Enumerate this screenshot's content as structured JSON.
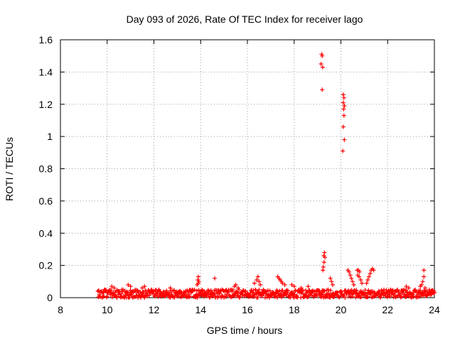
{
  "chart_data": {
    "type": "scatter",
    "title": "Day 093 of 2026, Rate Of TEC Index for receiver lago",
    "xlabel": "GPS time / hours",
    "ylabel": "ROTI / TECUs",
    "xlim": [
      8,
      24
    ],
    "ylim": [
      0,
      1.6
    ],
    "xticks": [
      8,
      10,
      12,
      14,
      16,
      18,
      20,
      22,
      24
    ],
    "xtick_labels": [
      "8",
      "10",
      "12",
      "14",
      "16",
      "18",
      "20",
      "22",
      "24"
    ],
    "yticks": [
      0,
      0.2,
      0.4,
      0.6,
      0.8,
      1.0,
      1.2,
      1.4,
      1.6
    ],
    "ytick_labels": [
      "0",
      "0.2",
      "0.4",
      "0.6",
      "0.8",
      "1",
      "1.2",
      "1.4",
      "1.6"
    ],
    "grid": true,
    "marker": "+",
    "marker_color": "#ff0000",
    "data_start_hour": 9.6,
    "data_end_hour": 24.0,
    "baseline_band": [
      0.0,
      0.05
    ],
    "series": [
      {
        "name": "ROTI",
        "points": [
          [
            19.18,
            1.51
          ],
          [
            19.2,
            1.5
          ],
          [
            19.15,
            1.45
          ],
          [
            19.22,
            1.43
          ],
          [
            19.2,
            1.29
          ],
          [
            20.1,
            1.26
          ],
          [
            20.13,
            1.24
          ],
          [
            20.1,
            1.21
          ],
          [
            20.15,
            1.19
          ],
          [
            20.12,
            1.17
          ],
          [
            20.13,
            1.13
          ],
          [
            20.1,
            1.06
          ],
          [
            20.15,
            0.98
          ],
          [
            20.08,
            0.91
          ],
          [
            19.3,
            0.28
          ],
          [
            19.27,
            0.26
          ],
          [
            19.32,
            0.25
          ],
          [
            19.28,
            0.22
          ],
          [
            19.25,
            0.19
          ],
          [
            19.23,
            0.17
          ],
          [
            19.55,
            0.12
          ],
          [
            19.6,
            0.1
          ],
          [
            19.65,
            0.08
          ],
          [
            13.9,
            0.13
          ],
          [
            13.88,
            0.11
          ],
          [
            13.92,
            0.1
          ],
          [
            13.9,
            0.09
          ],
          [
            13.85,
            0.08
          ],
          [
            14.6,
            0.12
          ],
          [
            16.45,
            0.13
          ],
          [
            16.4,
            0.11
          ],
          [
            16.5,
            0.1
          ],
          [
            16.3,
            0.09
          ],
          [
            16.55,
            0.08
          ],
          [
            17.3,
            0.13
          ],
          [
            17.35,
            0.12
          ],
          [
            17.4,
            0.11
          ],
          [
            17.45,
            0.1
          ],
          [
            17.5,
            0.09
          ],
          [
            17.6,
            0.08
          ],
          [
            17.9,
            0.08
          ],
          [
            18.0,
            0.07
          ],
          [
            18.3,
            0.06
          ],
          [
            18.6,
            0.07
          ],
          [
            20.3,
            0.17
          ],
          [
            20.35,
            0.16
          ],
          [
            20.4,
            0.14
          ],
          [
            20.45,
            0.12
          ],
          [
            20.5,
            0.1
          ],
          [
            20.55,
            0.08
          ],
          [
            20.7,
            0.17
          ],
          [
            20.75,
            0.17
          ],
          [
            20.8,
            0.16
          ],
          [
            20.72,
            0.14
          ],
          [
            20.78,
            0.13
          ],
          [
            20.85,
            0.11
          ],
          [
            20.9,
            0.09
          ],
          [
            21.3,
            0.17
          ],
          [
            21.35,
            0.18
          ],
          [
            21.4,
            0.17
          ],
          [
            21.25,
            0.15
          ],
          [
            21.2,
            0.13
          ],
          [
            21.15,
            0.11
          ],
          [
            21.1,
            0.09
          ],
          [
            23.55,
            0.17
          ],
          [
            23.55,
            0.13
          ],
          [
            23.5,
            0.1
          ],
          [
            23.45,
            0.08
          ],
          [
            23.4,
            0.07
          ],
          [
            23.6,
            0.06
          ],
          [
            22.8,
            0.07
          ],
          [
            22.9,
            0.06
          ],
          [
            10.2,
            0.07
          ],
          [
            10.3,
            0.06
          ],
          [
            10.9,
            0.08
          ],
          [
            11.0,
            0.07
          ],
          [
            11.5,
            0.06
          ],
          [
            11.6,
            0.07
          ],
          [
            12.7,
            0.06
          ],
          [
            15.5,
            0.08
          ],
          [
            15.45,
            0.07
          ],
          [
            15.6,
            0.06
          ],
          [
            24.0,
            0.03
          ]
        ]
      }
    ]
  }
}
